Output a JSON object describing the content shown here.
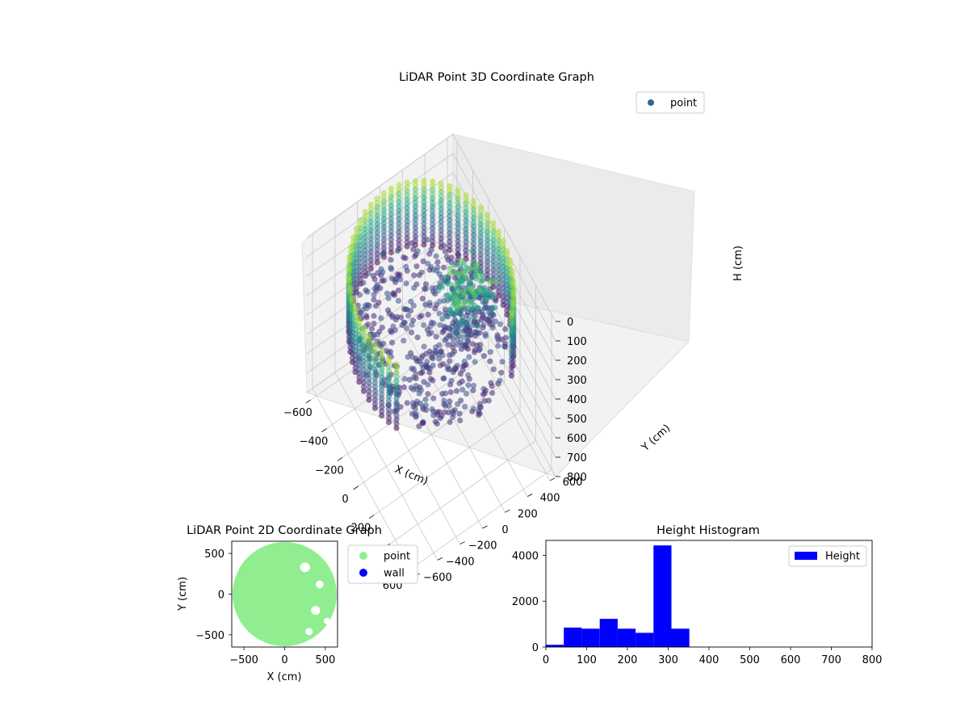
{
  "chart_data": [
    {
      "type": "scatter3d",
      "title": "LiDAR Point 3D Coordinate Graph",
      "xlabel": "X (cm)",
      "ylabel": "Y (cm)",
      "zlabel": "H (cm)",
      "xlim": [
        -650,
        650
      ],
      "ylim": [
        -650,
        650
      ],
      "zlim": [
        800,
        0
      ],
      "x_ticks": [
        -600,
        -400,
        -200,
        0,
        200,
        400,
        600
      ],
      "y_ticks": [
        -600,
        -400,
        -200,
        0,
        200,
        400,
        600
      ],
      "z_ticks": [
        0,
        100,
        200,
        300,
        400,
        500,
        600,
        700,
        800
      ],
      "grid": true,
      "legend": {
        "position": "top-right",
        "entries": [
          {
            "label": "point",
            "color": "#31688e"
          }
        ]
      },
      "colormap": "viridis",
      "description_shapes": {
        "wall_ring_radius": 600,
        "wall_height_range": [
          0,
          350
        ],
        "wall_gap_angle_range_deg": [
          -60,
          40
        ]
      }
    },
    {
      "type": "scatter",
      "title": "LiDAR Point 2D Coordinate Graph",
      "xlabel": "X (cm)",
      "ylabel": "Y (cm)",
      "xlim": [
        -650,
        650
      ],
      "ylim": [
        -650,
        650
      ],
      "x_ticks": [
        -500,
        0,
        500
      ],
      "y_ticks": [
        -500,
        0,
        500
      ],
      "legend": {
        "position": "outside-right",
        "entries": [
          {
            "label": "point",
            "color": "#90ee90"
          },
          {
            "label": "wall",
            "color": "#0000ff"
          }
        ]
      },
      "fill_radius": 640
    },
    {
      "type": "bar",
      "title": "Height Histogram",
      "xlabel": "",
      "ylabel": "",
      "xlim": [
        0,
        800
      ],
      "ylim": [
        0,
        4650
      ],
      "x_ticks": [
        0,
        100,
        200,
        300,
        400,
        500,
        600,
        700,
        800
      ],
      "y_ticks": [
        0,
        2000,
        4000
      ],
      "bin_width": 44,
      "bins": [
        {
          "start": 0,
          "count": 100
        },
        {
          "start": 44,
          "count": 850
        },
        {
          "start": 88,
          "count": 800
        },
        {
          "start": 132,
          "count": 1230
        },
        {
          "start": 176,
          "count": 800
        },
        {
          "start": 220,
          "count": 620
        },
        {
          "start": 264,
          "count": 4430
        },
        {
          "start": 308,
          "count": 800
        }
      ],
      "color": "#0000ff",
      "legend": {
        "position": "top-right",
        "entries": [
          {
            "label": "Height",
            "color": "#0000ff"
          }
        ]
      }
    }
  ]
}
